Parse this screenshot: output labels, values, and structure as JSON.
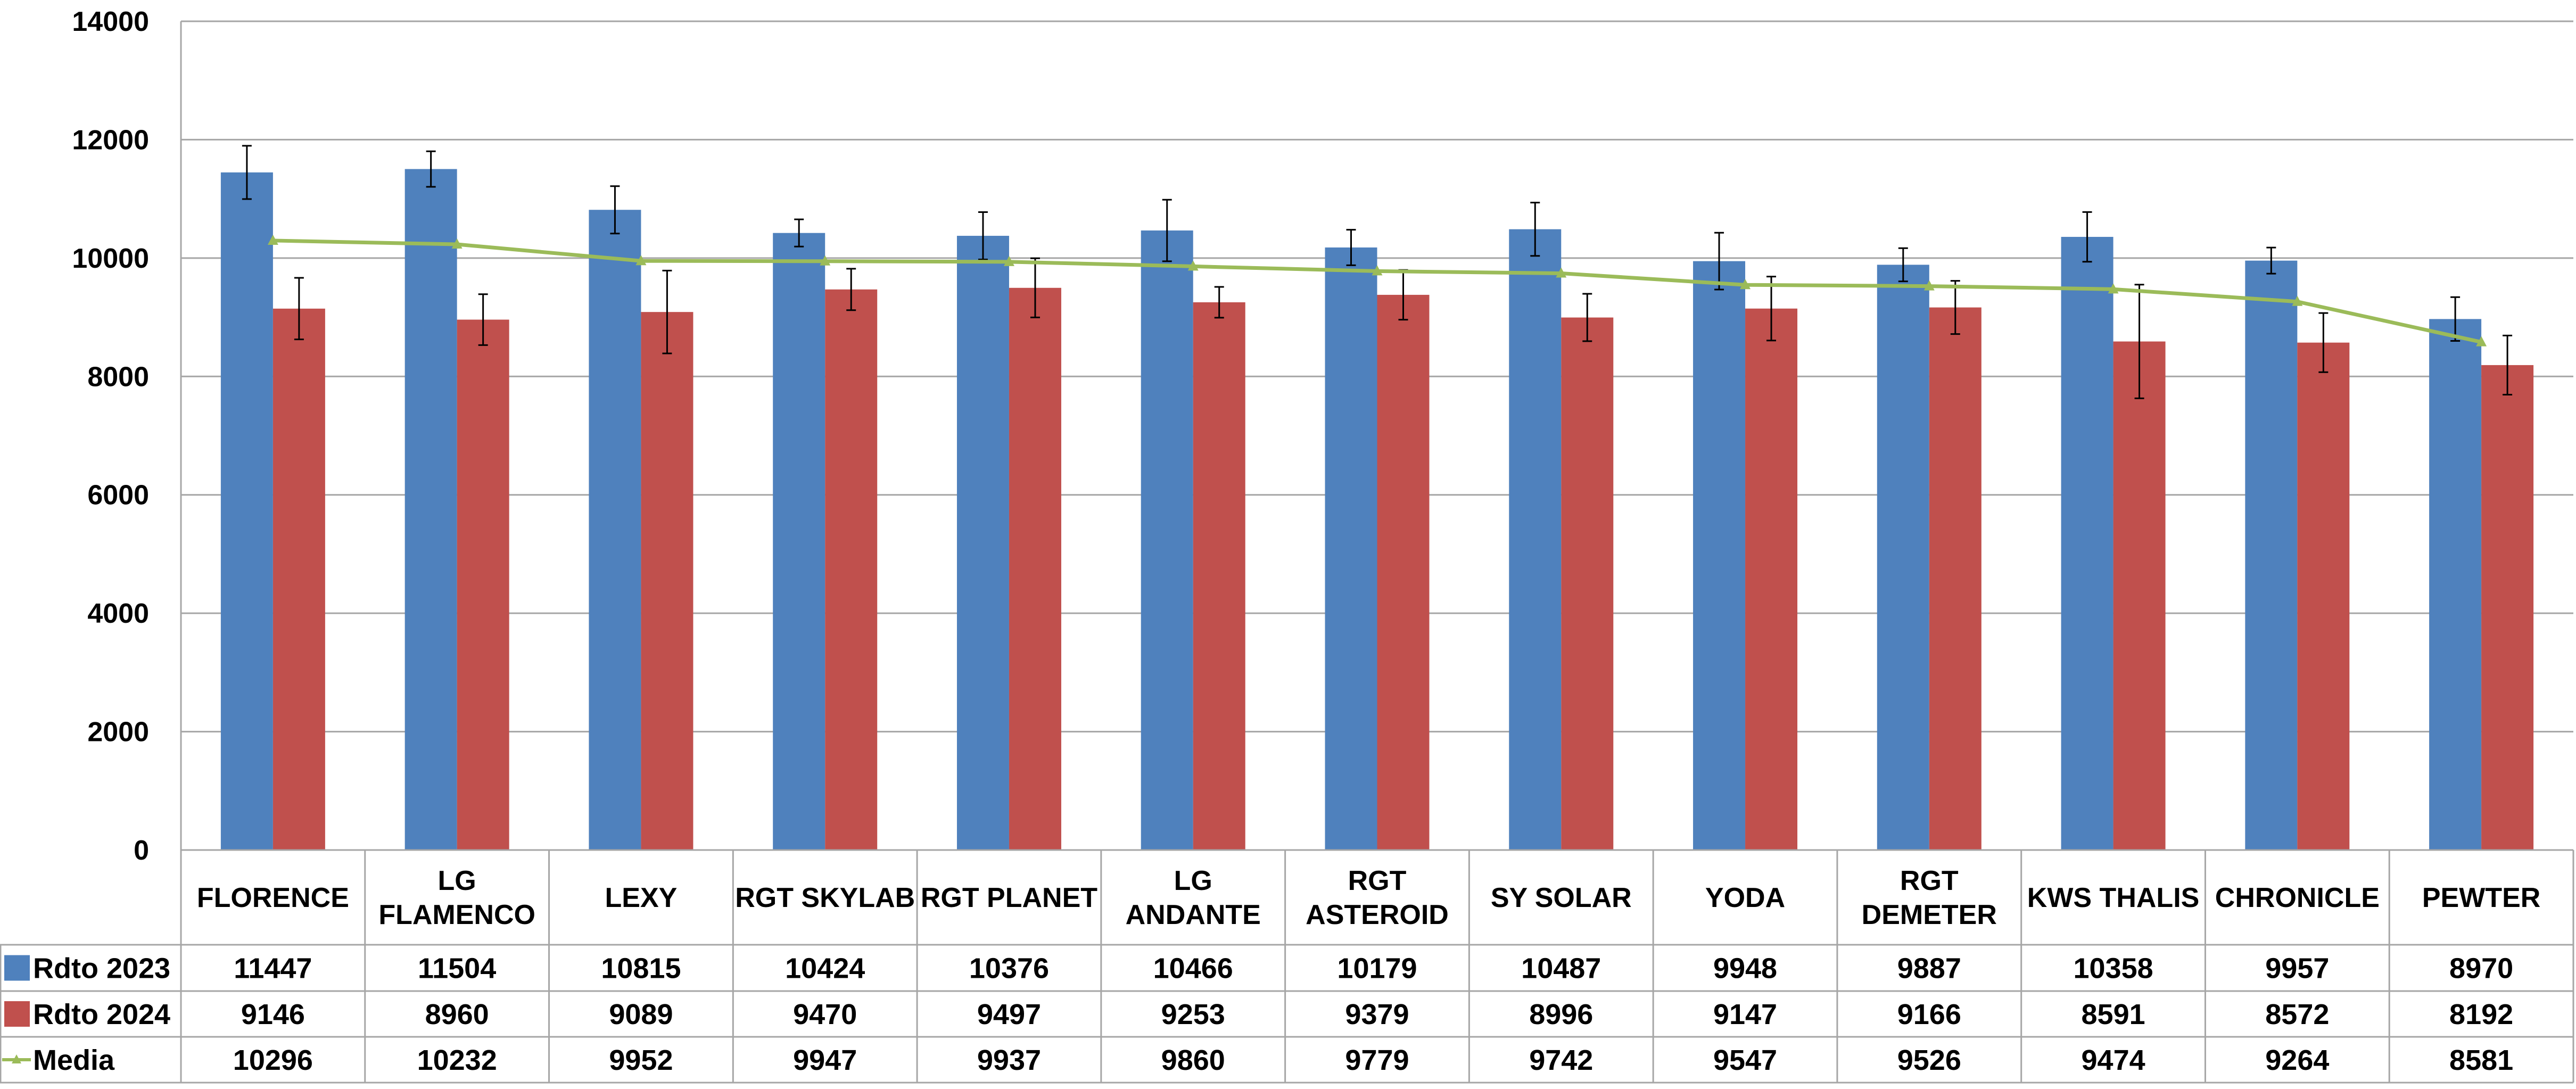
{
  "chart_data": {
    "type": "bar",
    "title": "",
    "xlabel": "",
    "ylabel": "",
    "ylim": [
      0,
      14000
    ],
    "yticks": [
      0,
      2000,
      4000,
      6000,
      8000,
      10000,
      12000,
      14000
    ],
    "grid": true,
    "legend": "data-table-left",
    "categories": [
      [
        "FLORENCE"
      ],
      [
        "LG",
        "FLAMENCO"
      ],
      [
        "LEXY"
      ],
      [
        "RGT SKYLAB"
      ],
      [
        "RGT PLANET"
      ],
      [
        "LG",
        "ANDANTE"
      ],
      [
        "RGT",
        "ASTEROID"
      ],
      [
        "SY SOLAR"
      ],
      [
        "YODA"
      ],
      [
        "RGT",
        "DEMETER"
      ],
      [
        "KWS THALIS"
      ],
      [
        "CHRONICLE"
      ],
      [
        "PEWTER"
      ]
    ],
    "series": [
      {
        "name": "Rdto 2023",
        "type": "bar",
        "color": "#4f81bd",
        "values": [
          11447,
          11504,
          10815,
          10424,
          10376,
          10466,
          10179,
          10487,
          9948,
          9887,
          10358,
          9957,
          8970
        ],
        "error": [
          450,
          300,
          400,
          230,
          400,
          520,
          300,
          450,
          480,
          280,
          420,
          220,
          370
        ]
      },
      {
        "name": "Rdto 2024",
        "type": "bar",
        "color": "#c0504d",
        "values": [
          9146,
          8960,
          9089,
          9470,
          9497,
          9253,
          9379,
          8996,
          9147,
          9166,
          8591,
          8572,
          8192
        ],
        "error": [
          520,
          430,
          700,
          350,
          500,
          260,
          420,
          400,
          540,
          450,
          960,
          500,
          500
        ]
      },
      {
        "name": "Media",
        "type": "line",
        "color": "#9bbb59",
        "values": [
          10296,
          10232,
          9952,
          9947,
          9937,
          9860,
          9779,
          9742,
          9547,
          9526,
          9474,
          9264,
          8581
        ]
      }
    ]
  }
}
